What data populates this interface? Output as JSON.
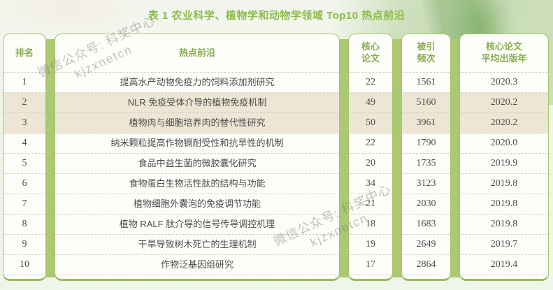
{
  "title": "表 1 农业科学、植物学和动物学领域 Top10 热点前沿",
  "watermarks": [
    {
      "line1": "微信公众号: 科奖中心",
      "line2": "kjzxnetcn"
    },
    {
      "line1": "微信公众号: 科奖中心",
      "line2": "kjzxnetcn"
    }
  ],
  "colors": {
    "accent_green": "#8bbb4a",
    "header_text_green": "#8aad4f",
    "border_green": "#a6c46b",
    "panel_green": "#abc972",
    "highlight_beige": "#ede6d5",
    "body_text": "#4c4c4c"
  },
  "table": {
    "columns": [
      {
        "key": "rank",
        "header_lines": [
          "排名"
        ]
      },
      {
        "key": "topic",
        "header_lines": [
          "热点前沿"
        ]
      },
      {
        "key": "core_papers",
        "header_lines": [
          "核心",
          "论文"
        ]
      },
      {
        "key": "citations",
        "header_lines": [
          "被引",
          "频次"
        ]
      },
      {
        "key": "avg_year",
        "header_lines": [
          "核心论文",
          "平均出版年"
        ]
      }
    ],
    "highlighted_ranks": [
      "2",
      "3"
    ],
    "rows": [
      {
        "rank": "1",
        "topic": "提高水产动物免疫力的饲料添加剂研究",
        "core_papers": "22",
        "citations": "1561",
        "avg_year": "2020.3"
      },
      {
        "rank": "2",
        "topic": "NLR 免疫受体介导的植物免疫机制",
        "core_papers": "49",
        "citations": "5160",
        "avg_year": "2020.2"
      },
      {
        "rank": "3",
        "topic": "植物肉与细胞培养肉的替代性研究",
        "core_papers": "50",
        "citations": "3961",
        "avg_year": "2020.2"
      },
      {
        "rank": "4",
        "topic": "纳米颗粒提高作物镉耐受性和抗旱性的机制",
        "core_papers": "22",
        "citations": "1790",
        "avg_year": "2020.0"
      },
      {
        "rank": "5",
        "topic": "食品中益生菌的微胶囊化研究",
        "core_papers": "20",
        "citations": "1735",
        "avg_year": "2019.9"
      },
      {
        "rank": "6",
        "topic": "食物蛋白生物活性肽的结构与功能",
        "core_papers": "34",
        "citations": "3123",
        "avg_year": "2019.8"
      },
      {
        "rank": "7",
        "topic": "植物细胞外囊泡的免疫调节功能",
        "core_papers": "21",
        "citations": "2030",
        "avg_year": "2019.8"
      },
      {
        "rank": "8",
        "topic": "植物 RALF 肽介导的信号传导调控机理",
        "core_papers": "18",
        "citations": "1683",
        "avg_year": "2019.8"
      },
      {
        "rank": "9",
        "topic": "干旱导致树木死亡的生理机制",
        "core_papers": "19",
        "citations": "2649",
        "avg_year": "2019.7"
      },
      {
        "rank": "10",
        "topic": "作物泛基因组研究",
        "core_papers": "17",
        "citations": "2864",
        "avg_year": "2019.4"
      }
    ]
  }
}
